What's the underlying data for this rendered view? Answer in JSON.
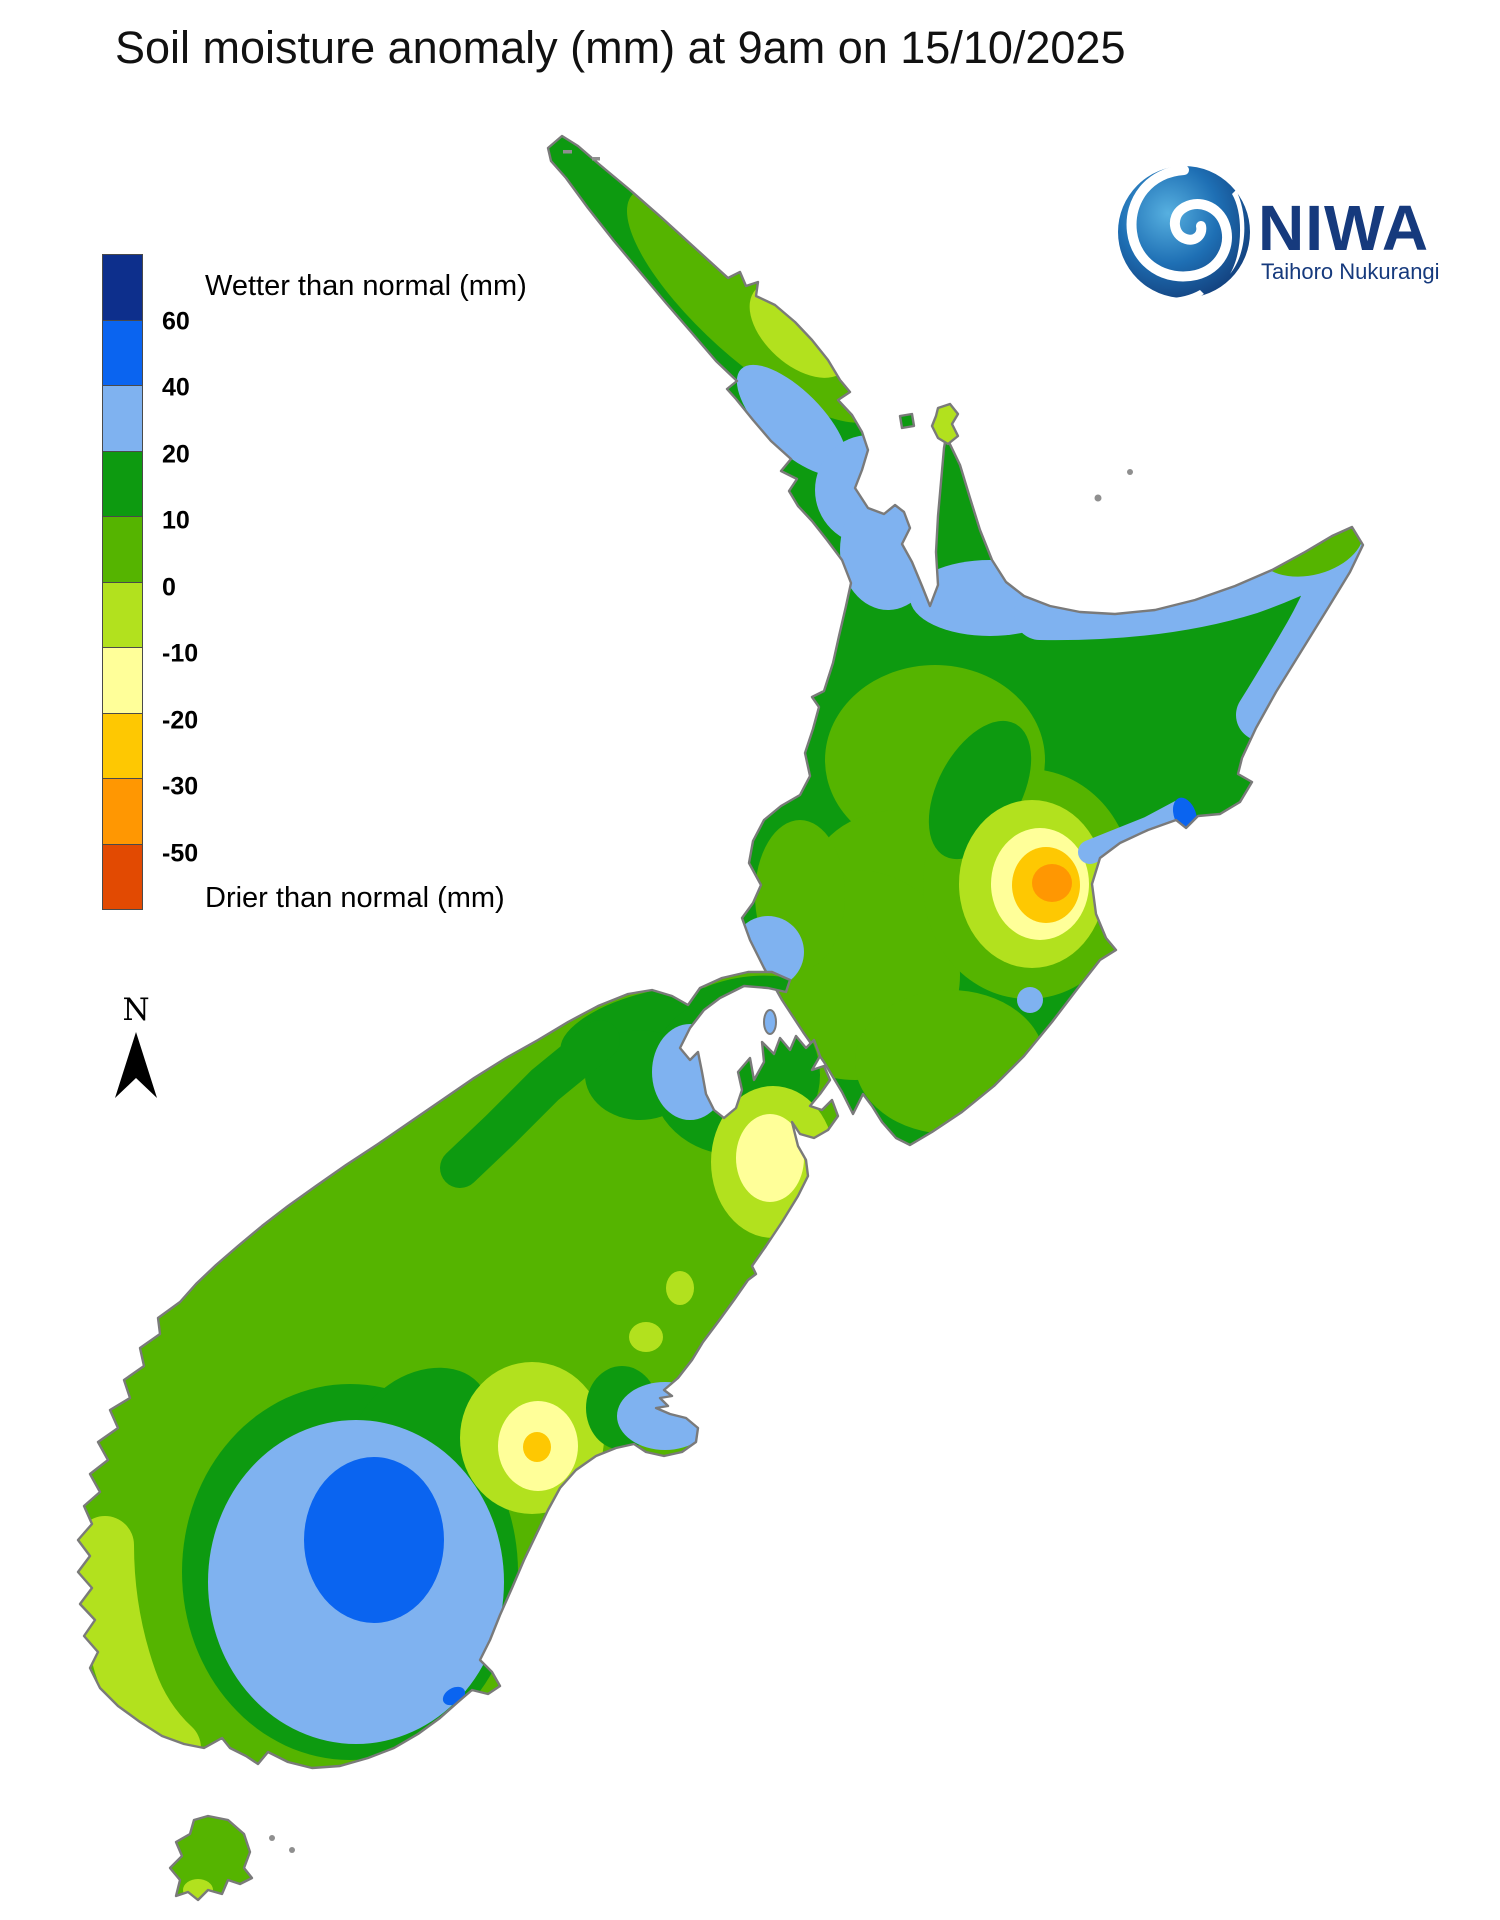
{
  "title": "Soil moisture anomaly (mm) at 9am on 15/10/2025",
  "legend": {
    "wetter_label": "Wetter than normal (mm)",
    "drier_label": "Drier than normal (mm)",
    "tick_labels": [
      "60",
      "40",
      "20",
      "10",
      "0",
      "-10",
      "-20",
      "-30",
      "-50"
    ],
    "colors": [
      "#0d2f8c",
      "#0a64f0",
      "#7fb2f0",
      "#0d9a10",
      "#55b400",
      "#b2e11e",
      "#ffff99",
      "#fec802",
      "#ff9702",
      "#e24a02"
    ]
  },
  "north_indicator": {
    "label": "N"
  },
  "logo": {
    "name": "NIWA",
    "tagline": "Taihoro Nukurangi",
    "brand_color": "#163a7d"
  },
  "map": {
    "coastline_color": "#7a7a7a"
  }
}
